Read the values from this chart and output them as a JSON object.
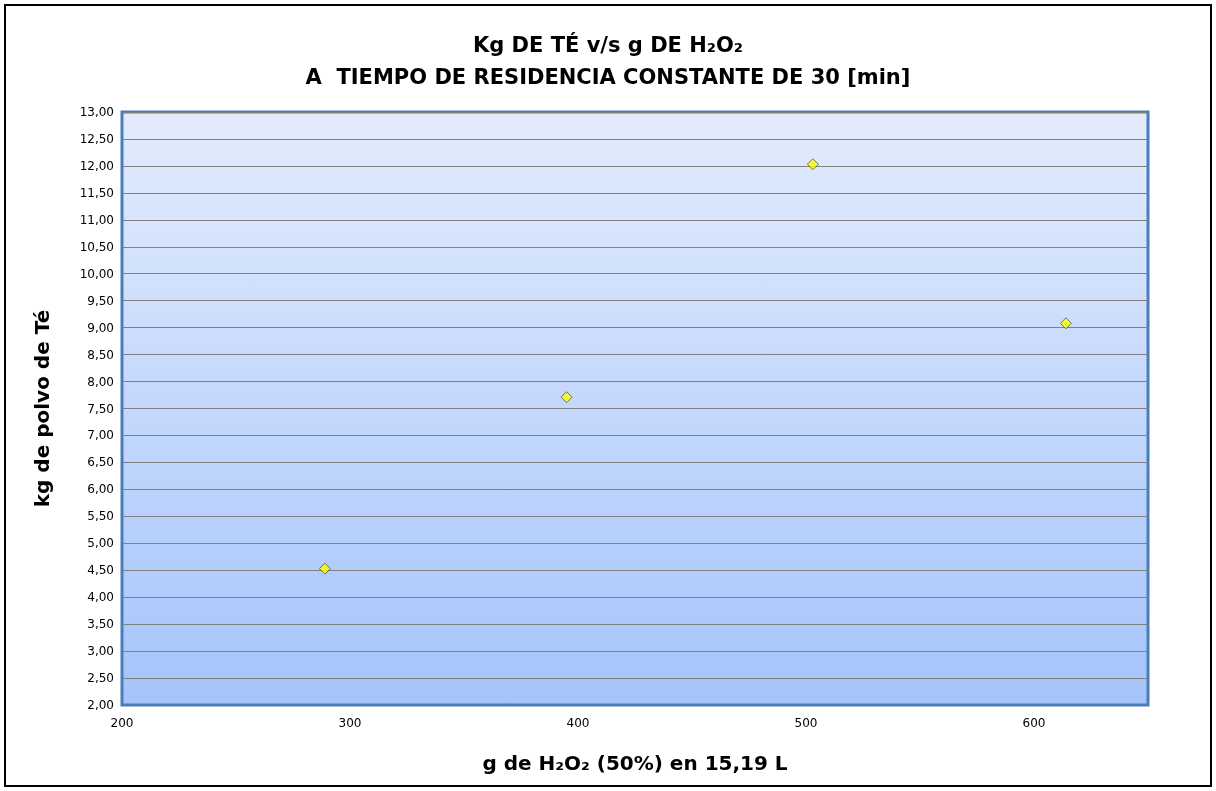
{
  "chart_data": {
    "type": "scatter",
    "title": "Kg DE TÉ v/s g DE H₂O₂\nA  TIEMPO DE RESIDENCIA CONSTANTE DE 30 [min]",
    "xlabel": "g de H₂O₂ (50%) en 15,19 L",
    "ylabel": "kg de polvo de Té",
    "x": [
      289,
      395,
      503,
      614
    ],
    "series": [
      {
        "color": "#ffff00",
        "values": [
          4.53,
          7.71,
          12.03,
          9.08
        ]
      }
    ],
    "xlim": [
      200,
      650
    ],
    "xticks": [
      200,
      300,
      400,
      500,
      600
    ],
    "ylim": [
      2,
      13
    ],
    "yticks": [
      {
        "value": 2,
        "label": "2,00"
      },
      {
        "value": 2.5,
        "label": "2,50"
      },
      {
        "value": 3,
        "label": "3,00"
      },
      {
        "value": 3.5,
        "label": "3,50"
      },
      {
        "value": 4,
        "label": "4,00"
      },
      {
        "value": 4.5,
        "label": "4,50"
      },
      {
        "value": 5,
        "label": "5,00"
      },
      {
        "value": 5.5,
        "label": "5,50"
      },
      {
        "value": 6,
        "label": "6,00"
      },
      {
        "value": 6.5,
        "label": "6,50"
      },
      {
        "value": 7,
        "label": "7,00"
      },
      {
        "value": 7.5,
        "label": "7,50"
      },
      {
        "value": 8,
        "label": "8,00"
      },
      {
        "value": 8.5,
        "label": "8,50"
      },
      {
        "value": 9,
        "label": "9,00"
      },
      {
        "value": 9.5,
        "label": "9,50"
      },
      {
        "value": 10,
        "label": "10,00"
      },
      {
        "value": 10.5,
        "label": "10,50"
      },
      {
        "value": 11,
        "label": "11,00"
      },
      {
        "value": 11.5,
        "label": "11,50"
      },
      {
        "value": 12,
        "label": "12,00"
      },
      {
        "value": 12.5,
        "label": "12,50"
      },
      {
        "value": 13,
        "label": "13,00"
      }
    ],
    "grid": "y",
    "marker": "diamond"
  }
}
